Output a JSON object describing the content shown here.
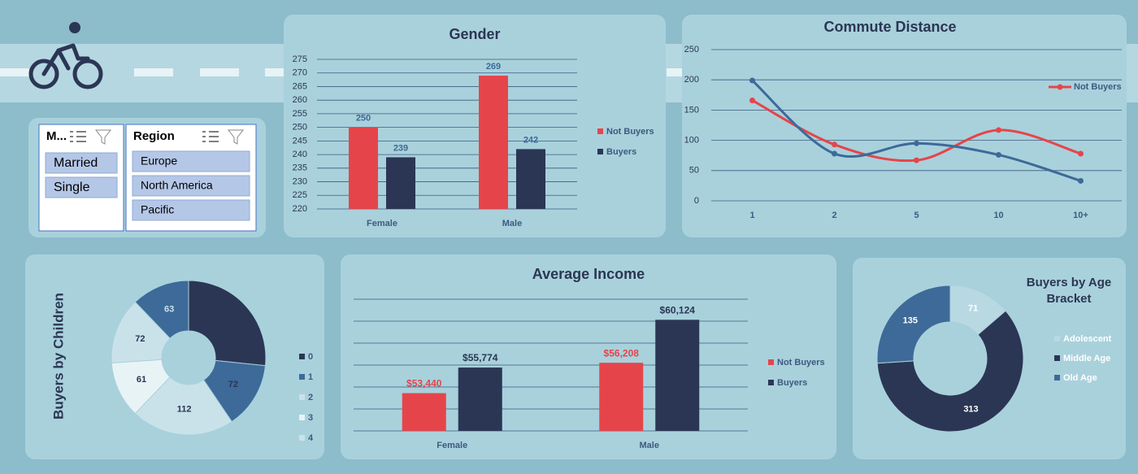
{
  "slicers": [
    {
      "title": "M...",
      "items": [
        "Married",
        "Single"
      ]
    },
    {
      "title": "Region",
      "items": [
        "Europe",
        "North America",
        "Pacific"
      ]
    }
  ],
  "chart_data": [
    {
      "type": "bar",
      "title": "Gender",
      "categories": [
        "Female",
        "Male"
      ],
      "series": [
        {
          "name": "Not Buyers",
          "color": "#e5454a",
          "values": [
            250,
            269
          ]
        },
        {
          "name": "Buyers",
          "color": "#2b3654",
          "values": [
            239,
            242
          ]
        }
      ],
      "ylim": [
        220,
        275
      ],
      "yticks": [
        220,
        225,
        230,
        235,
        240,
        245,
        250,
        255,
        260,
        265,
        270,
        275
      ],
      "grid": true,
      "legend": "right"
    },
    {
      "type": "line",
      "title": "Commute Distance",
      "categories": [
        "1",
        "2",
        "5",
        "10",
        "10+"
      ],
      "series": [
        {
          "name": "Not Buyers",
          "color": "#e5454a",
          "values": [
            166,
            93,
            67,
            117,
            78
          ]
        },
        {
          "color": "#3d6a98",
          "values": [
            199,
            78,
            95,
            76,
            33
          ]
        }
      ],
      "ylim": [
        0,
        250
      ],
      "yticks": [
        0,
        50,
        100,
        150,
        200,
        250
      ],
      "grid": true,
      "legend": "right"
    },
    {
      "type": "donut",
      "title": "Buyers by Children",
      "categories": [
        "0",
        "1",
        "2",
        "3",
        "4",
        null
      ],
      "values": [
        138,
        72,
        112,
        61,
        72,
        63
      ],
      "colors": [
        "#2b3654",
        "#3d6a98",
        "#c9e2ea",
        "#e8f3f6",
        "#c9e2ea",
        "#3d6a98"
      ],
      "legend": "right"
    },
    {
      "type": "bar",
      "title": "Average Income",
      "categories": [
        "Female",
        "Male"
      ],
      "series": [
        {
          "name": "Not Buyers",
          "color": "#e5454a",
          "values": [
            53440,
            56208
          ],
          "value_labels": [
            "$53,440",
            "$56,208"
          ]
        },
        {
          "name": "Buyers",
          "color": "#2b3654",
          "values": [
            55774,
            60124
          ],
          "value_labels": [
            "$55,774",
            "$60,124"
          ]
        }
      ],
      "ylim": [
        50000,
        62000
      ],
      "yticks": [
        50000,
        52000,
        54000,
        56000,
        58000,
        60000,
        62000
      ],
      "grid": true,
      "legend": "right"
    },
    {
      "type": "donut",
      "title": "Buyers by Age Bracket",
      "categories": [
        "Adolescent",
        "Middle Age",
        "Old Age"
      ],
      "values": [
        71,
        313,
        135
      ],
      "colors": [
        "#b9d9e2",
        "#2b3654",
        "#3d6a98"
      ],
      "legend": "right"
    }
  ]
}
